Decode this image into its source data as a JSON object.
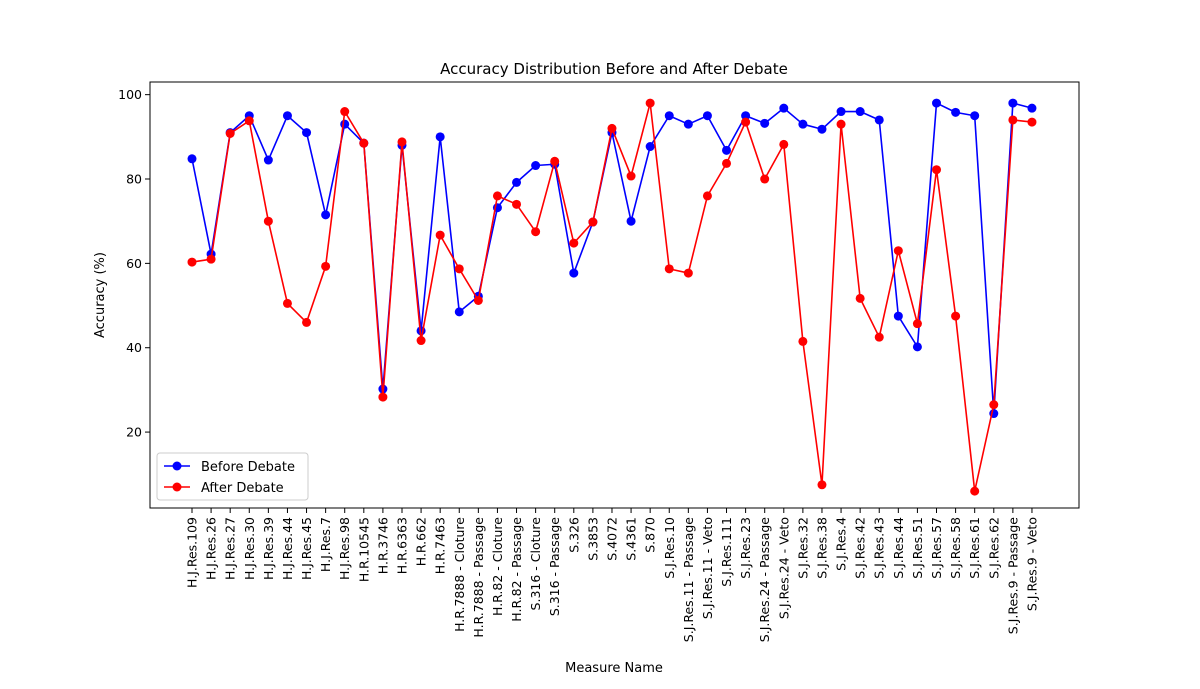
{
  "chart_data": {
    "type": "line",
    "title": "Accuracy Distribution Before and After Debate",
    "xlabel": "Measure Name",
    "ylabel": "Accuracy (%)",
    "ylim": [
      2,
      103
    ],
    "yticks": [
      20,
      40,
      60,
      80,
      100
    ],
    "grid": false,
    "legend_position": "bottom-left",
    "categories": [
      "H.J.Res.109",
      "H.J.Res.26",
      "H.J.Res.27",
      "H.J.Res.30",
      "H.J.Res.39",
      "H.J.Res.44",
      "H.J.Res.45",
      "H.J.Res.7",
      "H.J.Res.98",
      "H.R.10545",
      "H.R.3746",
      "H.R.6363",
      "H.R.662",
      "H.R.7463",
      "H.R.7888 - Cloture",
      "H.R.7888 - Passage",
      "H.R.82 - Cloture",
      "H.R.82 - Passage",
      "S.316 - Cloture",
      "S.316 - Passage",
      "S.326",
      "S.3853",
      "S.4072",
      "S.4361",
      "S.870",
      "S.J.Res.10",
      "S.J.Res.11 - Passage",
      "S.J.Res.11 - Veto",
      "S.J.Res.111",
      "S.J.Res.23",
      "S.J.Res.24 - Passage",
      "S.J.Res.24 - Veto",
      "S.J.Res.32",
      "S.J.Res.38",
      "S.J.Res.4",
      "S.J.Res.42",
      "S.J.Res.43",
      "S.J.Res.44",
      "S.J.Res.51",
      "S.J.Res.57",
      "S.J.Res.58",
      "S.J.Res.61",
      "S.J.Res.62",
      "S.J.Res.9 - Passage",
      "S.J.Res.9 - Veto"
    ],
    "series": [
      {
        "name": "Before Debate",
        "color": "#0000ff",
        "values": [
          84.8,
          62.2,
          91.0,
          95.0,
          84.5,
          95.0,
          91.0,
          71.5,
          93.0,
          88.5,
          30.2,
          88.0,
          44.0,
          90.0,
          48.5,
          52.2,
          73.2,
          79.2,
          83.2,
          83.5,
          57.7,
          69.8,
          91.0,
          70.0,
          87.7,
          95.0,
          93.0,
          95.0,
          86.8,
          95.0,
          93.2,
          96.8,
          93.0,
          91.8,
          96.0,
          96.0,
          94.0,
          47.5,
          40.2,
          98.0,
          95.8,
          95.0,
          24.4,
          98.0,
          96.8
        ]
      },
      {
        "name": "After Debate",
        "color": "#ff0000",
        "values": [
          60.3,
          61.0,
          90.8,
          93.8,
          70.0,
          50.5,
          46.0,
          59.3,
          96.0,
          88.5,
          28.3,
          88.8,
          41.7,
          66.7,
          58.7,
          51.2,
          76.0,
          74.0,
          67.5,
          84.2,
          64.8,
          69.8,
          92.0,
          80.7,
          98.0,
          58.7,
          57.7,
          76.0,
          83.7,
          93.5,
          80.0,
          88.2,
          41.5,
          7.5,
          93.0,
          51.7,
          42.5,
          63.0,
          45.7,
          82.2,
          47.5,
          6.0,
          26.5,
          94.0,
          93.5
        ]
      }
    ]
  }
}
